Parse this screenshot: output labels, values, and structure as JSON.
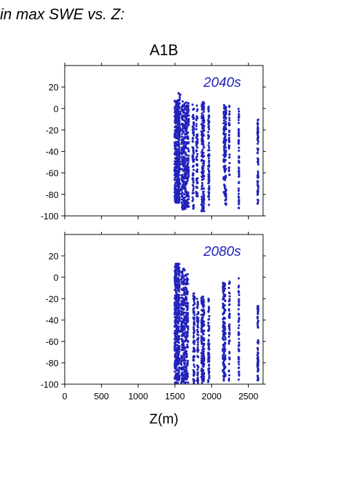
{
  "figure": {
    "title": "in max SWE vs. Z:",
    "scenario": "A1B",
    "xlabel": "Z(m)",
    "colors": {
      "points": "#2222bb",
      "annotation": "#2222bb",
      "axes": "#000000"
    }
  },
  "chart_data": [
    {
      "type": "scatter",
      "title": "2040s",
      "xlim": [
        0,
        2700
      ],
      "ylim": [
        -100,
        40
      ],
      "yticks": [
        20,
        0,
        -20,
        -40,
        -60,
        -80,
        -100
      ],
      "ytick_labels": [
        "20",
        "0",
        "-20",
        "-40",
        "-60",
        "-80",
        "-100"
      ],
      "xticks": [
        0,
        500,
        1000,
        1500,
        2000,
        2500
      ],
      "xtick_labels": [],
      "x_clusters": [
        {
          "x": 1530,
          "spread": 35,
          "ymin": -88,
          "ymax": 8,
          "n": 420
        },
        {
          "x": 1560,
          "spread": 15,
          "ymin": -85,
          "ymax": 17,
          "n": 60
        },
        {
          "x": 1620,
          "spread": 30,
          "ymin": -94,
          "ymax": 7,
          "n": 240
        },
        {
          "x": 1670,
          "spread": 20,
          "ymin": -92,
          "ymax": 6,
          "n": 150
        },
        {
          "x": 1750,
          "spread": 10,
          "ymin": -95,
          "ymax": 5,
          "n": 80
        },
        {
          "x": 1800,
          "spread": 10,
          "ymin": -90,
          "ymax": 3,
          "n": 60
        },
        {
          "x": 1880,
          "spread": 18,
          "ymin": -96,
          "ymax": 6,
          "n": 170
        },
        {
          "x": 1960,
          "spread": 8,
          "ymin": -90,
          "ymax": 2,
          "n": 80
        },
        {
          "x": 2180,
          "spread": 18,
          "ymin": -90,
          "ymax": 4,
          "n": 150
        },
        {
          "x": 2240,
          "spread": 5,
          "ymin": -62,
          "ymax": 3,
          "n": 40
        },
        {
          "x": 2370,
          "spread": 4,
          "ymin": -94,
          "ymax": 0,
          "n": 60
        },
        {
          "x": 2630,
          "spread": 6,
          "ymin": -90,
          "ymax": -10,
          "n": 70
        }
      ]
    },
    {
      "type": "scatter",
      "title": "2080s",
      "xlim": [
        0,
        2700
      ],
      "ylim": [
        -100,
        40
      ],
      "yticks": [
        20,
        0,
        -20,
        -40,
        -60,
        -80,
        -100
      ],
      "ytick_labels": [
        "20",
        "0",
        "-20",
        "-40",
        "-60",
        "-80",
        "-100"
      ],
      "xticks": [
        0,
        500,
        1000,
        1500,
        2000,
        2500
      ],
      "xtick_labels": [
        "0",
        "500",
        "1000",
        "1500",
        "2000",
        "2500"
      ],
      "x_clusters": [
        {
          "x": 1530,
          "spread": 35,
          "ymin": -99,
          "ymax": 13,
          "n": 420
        },
        {
          "x": 1610,
          "spread": 25,
          "ymin": -99,
          "ymax": 8,
          "n": 200
        },
        {
          "x": 1660,
          "spread": 20,
          "ymin": -99,
          "ymax": 4,
          "n": 140
        },
        {
          "x": 1760,
          "spread": 10,
          "ymin": -99,
          "ymax": -15,
          "n": 80
        },
        {
          "x": 1810,
          "spread": 10,
          "ymin": -99,
          "ymax": -20,
          "n": 60
        },
        {
          "x": 1880,
          "spread": 20,
          "ymin": -99,
          "ymax": -18,
          "n": 170
        },
        {
          "x": 1960,
          "spread": 8,
          "ymin": -98,
          "ymax": -20,
          "n": 70
        },
        {
          "x": 2170,
          "spread": 18,
          "ymin": -97,
          "ymax": -5,
          "n": 150
        },
        {
          "x": 2240,
          "spread": 6,
          "ymin": -97,
          "ymax": -3,
          "n": 50
        },
        {
          "x": 2370,
          "spread": 4,
          "ymin": -97,
          "ymax": 0,
          "n": 50
        },
        {
          "x": 2630,
          "spread": 6,
          "ymin": -97,
          "ymax": -25,
          "n": 70
        }
      ]
    }
  ]
}
